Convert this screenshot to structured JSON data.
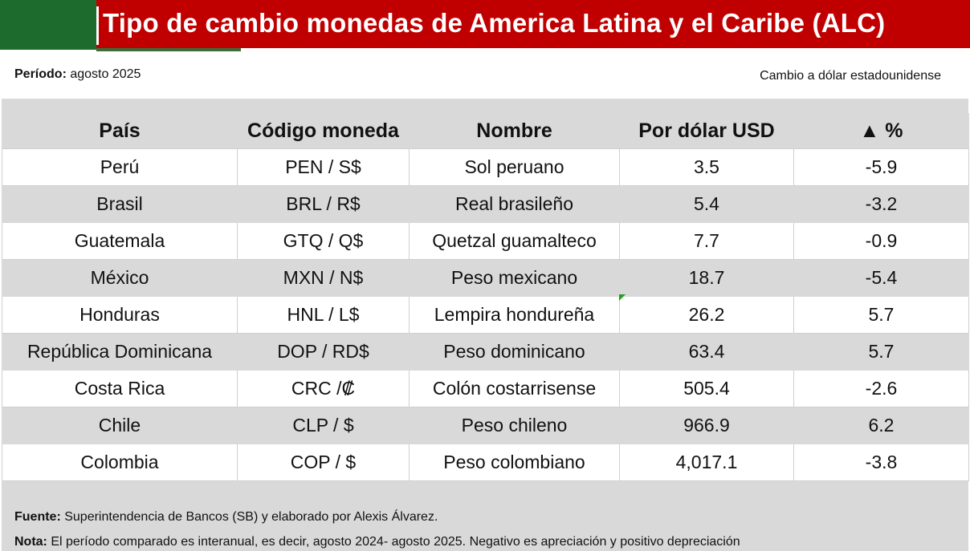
{
  "header": {
    "title": "Tipo de cambio monedas de America Latina y el Caribe (ALC)",
    "periodo_label": "Período:",
    "periodo_value": "agosto 2025",
    "cambio": "Cambio a dólar estadounidense"
  },
  "table": {
    "columns": [
      "País",
      "Código moneda",
      "Nombre",
      "Por dólar USD",
      "▲ %"
    ],
    "rows": [
      [
        "Perú",
        "PEN / S$",
        "Sol peruano",
        "3.5",
        "-5.9"
      ],
      [
        "Brasil",
        "BRL / R$",
        "Real brasileño",
        "5.4",
        "-3.2"
      ],
      [
        "Guatemala",
        "GTQ / Q$",
        "Quetzal guamalteco",
        "7.7",
        "-0.9"
      ],
      [
        "México",
        "MXN / N$",
        "Peso mexicano",
        "18.7",
        "-5.4"
      ],
      [
        "Honduras",
        "HNL / L$",
        "Lempira hondureña",
        "26.2",
        "5.7"
      ],
      [
        "República Dominicana",
        "DOP / RD$",
        "Peso dominicano",
        "63.4",
        "5.7"
      ],
      [
        "Costa Rica",
        "CRC /₡",
        "Colón costarrisense",
        "505.4",
        "-2.6"
      ],
      [
        "Chile",
        "CLP / $",
        "Peso chileno",
        "966.9",
        "6.2"
      ],
      [
        "Colombia",
        "COP / $",
        "Peso colombiano",
        "4,017.1",
        "-3.8"
      ]
    ]
  },
  "footer": {
    "fuente_label": "Fuente:",
    "fuente_text": " Superintendencia de Bancos (SB) y elaborado por Alexis Álvarez.",
    "nota_label": "Nota:",
    "nota_text": " El período comparado es interanual, es decir, agosto 2024- agosto 2025. Negativo es apreciación y positivo depreciación"
  },
  "colors": {
    "title_bg": "#c00000",
    "title_accent": "#1e6b2e",
    "band": "#d9d9d9"
  }
}
